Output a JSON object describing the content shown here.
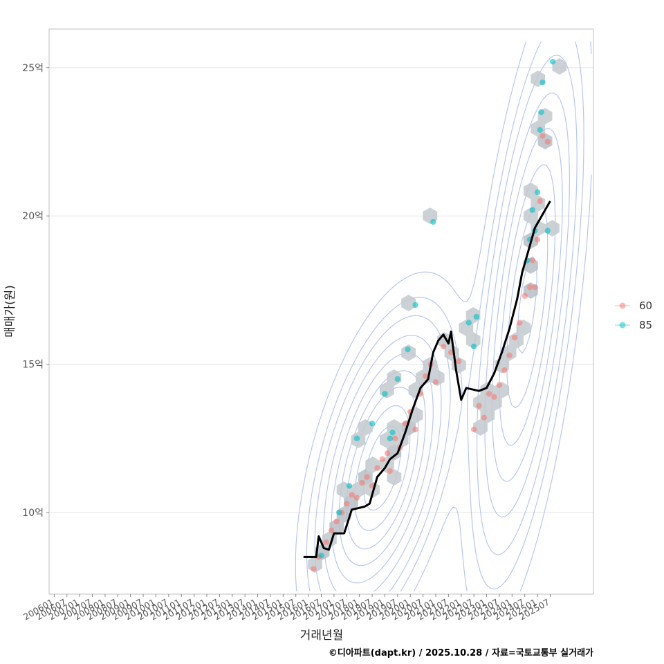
{
  "chart_data": {
    "type": "scatter",
    "xlabel": "거래년월",
    "ylabel": "매매가(원)",
    "x_ticks": [
      "200601",
      "200607",
      "200701",
      "200707",
      "200801",
      "200807",
      "200901",
      "200907",
      "201001",
      "201007",
      "201101",
      "201107",
      "201201",
      "201207",
      "201301",
      "201307",
      "201401",
      "201407",
      "201501",
      "201507",
      "201601",
      "201607",
      "201701",
      "201707",
      "201801",
      "201807",
      "201901",
      "201907",
      "202001",
      "202007",
      "202101",
      "202107",
      "202201",
      "202207",
      "202301",
      "202307",
      "202401",
      "202407",
      "202501",
      "202507"
    ],
    "y_ticks": [
      {
        "value": 10,
        "label": "10억"
      },
      {
        "value": 15,
        "label": "15억"
      },
      {
        "value": 20,
        "label": "20억"
      },
      {
        "value": 25,
        "label": "25억"
      }
    ],
    "xlim": [
      2005.8,
      2027.2
    ],
    "ylim": [
      7.25,
      26.3
    ],
    "legend": [
      {
        "name": "60",
        "color": "#F8766D"
      },
      {
        "name": "85",
        "color": "#00BFC4"
      }
    ],
    "series": [
      {
        "name": "60",
        "color": "#F8766D",
        "points": [
          [
            2016.2,
            8.1
          ],
          [
            2016.4,
            8.5
          ],
          [
            2016.7,
            9.0
          ],
          [
            2016.9,
            9.4
          ],
          [
            2017.1,
            9.7
          ],
          [
            2017.3,
            10.0
          ],
          [
            2017.5,
            10.3
          ],
          [
            2017.7,
            10.6
          ],
          [
            2017.9,
            10.5
          ],
          [
            2018.1,
            11.0
          ],
          [
            2018.3,
            11.2
          ],
          [
            2018.5,
            10.9
          ],
          [
            2018.7,
            11.5
          ],
          [
            2018.9,
            11.8
          ],
          [
            2019.1,
            12.0
          ],
          [
            2019.2,
            11.4
          ],
          [
            2019.4,
            12.5
          ],
          [
            2019.6,
            12.2
          ],
          [
            2019.8,
            13.0
          ],
          [
            2020.0,
            13.4
          ],
          [
            2020.2,
            12.8
          ],
          [
            2020.4,
            14.0
          ],
          [
            2020.6,
            14.6
          ],
          [
            2020.8,
            15.0
          ],
          [
            2021.0,
            14.4
          ],
          [
            2021.3,
            15.6
          ],
          [
            2021.6,
            15.4
          ],
          [
            2021.9,
            15.1
          ],
          [
            2022.5,
            12.8
          ],
          [
            2022.7,
            13.6
          ],
          [
            2022.9,
            13.2
          ],
          [
            2023.1,
            14.0
          ],
          [
            2023.3,
            13.9
          ],
          [
            2023.5,
            14.3
          ],
          [
            2023.7,
            14.8
          ],
          [
            2023.9,
            15.3
          ],
          [
            2024.1,
            15.9
          ],
          [
            2024.3,
            16.4
          ],
          [
            2024.5,
            17.3
          ],
          [
            2024.7,
            17.6
          ],
          [
            2024.8,
            18.5
          ],
          [
            2024.9,
            17.6
          ],
          [
            2025.0,
            19.2
          ],
          [
            2025.1,
            20.5
          ],
          [
            2025.2,
            22.7
          ],
          [
            2025.4,
            22.5
          ]
        ]
      },
      {
        "name": "85",
        "color": "#00BFC4",
        "points": [
          [
            2016.5,
            8.55
          ],
          [
            2017.2,
            10.0
          ],
          [
            2017.6,
            10.9
          ],
          [
            2017.9,
            12.5
          ],
          [
            2018.5,
            13.0
          ],
          [
            2019.0,
            14.0
          ],
          [
            2019.2,
            12.5
          ],
          [
            2019.3,
            12.7
          ],
          [
            2019.5,
            14.5
          ],
          [
            2019.9,
            15.5
          ],
          [
            2020.2,
            17.0
          ],
          [
            2020.9,
            19.8
          ],
          [
            2022.3,
            16.4
          ],
          [
            2022.5,
            15.6
          ],
          [
            2022.6,
            16.6
          ],
          [
            2024.6,
            18.5
          ],
          [
            2024.7,
            19.2
          ],
          [
            2024.8,
            20.2
          ],
          [
            2024.9,
            19.5
          ],
          [
            2025.0,
            20.8
          ],
          [
            2025.1,
            22.9
          ],
          [
            2025.15,
            23.5
          ],
          [
            2025.2,
            24.5
          ],
          [
            2025.4,
            19.5
          ],
          [
            2025.6,
            25.2
          ]
        ]
      },
      {
        "name": "moving-average",
        "color": "#000000",
        "points": [
          [
            2015.8,
            8.5
          ],
          [
            2016.3,
            8.5
          ],
          [
            2016.4,
            9.2
          ],
          [
            2016.6,
            8.8
          ],
          [
            2016.8,
            8.75
          ],
          [
            2017.0,
            9.3
          ],
          [
            2017.4,
            9.3
          ],
          [
            2017.7,
            10.1
          ],
          [
            2018.2,
            10.2
          ],
          [
            2018.4,
            10.3
          ],
          [
            2018.7,
            11.2
          ],
          [
            2019.0,
            11.5
          ],
          [
            2019.2,
            11.8
          ],
          [
            2019.5,
            12.0
          ],
          [
            2019.8,
            12.7
          ],
          [
            2020.1,
            13.5
          ],
          [
            2020.4,
            14.2
          ],
          [
            2020.7,
            14.5
          ],
          [
            2020.9,
            15.4
          ],
          [
            2021.1,
            15.8
          ],
          [
            2021.3,
            16.0
          ],
          [
            2021.5,
            15.7
          ],
          [
            2021.6,
            16.1
          ],
          [
            2021.8,
            14.8
          ],
          [
            2022.0,
            13.8
          ],
          [
            2022.2,
            14.2
          ],
          [
            2022.7,
            14.1
          ],
          [
            2023.0,
            14.2
          ],
          [
            2023.3,
            14.7
          ],
          [
            2023.6,
            15.4
          ],
          [
            2023.9,
            16.2
          ],
          [
            2024.2,
            17.2
          ],
          [
            2024.4,
            18.1
          ],
          [
            2024.7,
            19.0
          ],
          [
            2024.9,
            19.6
          ],
          [
            2025.1,
            19.9
          ],
          [
            2025.3,
            20.2
          ],
          [
            2025.5,
            20.5
          ]
        ]
      }
    ]
  },
  "caption": "©디아파트(dapt.kr) / 2025.10.28 / 자료=국토교통부 실거래가"
}
